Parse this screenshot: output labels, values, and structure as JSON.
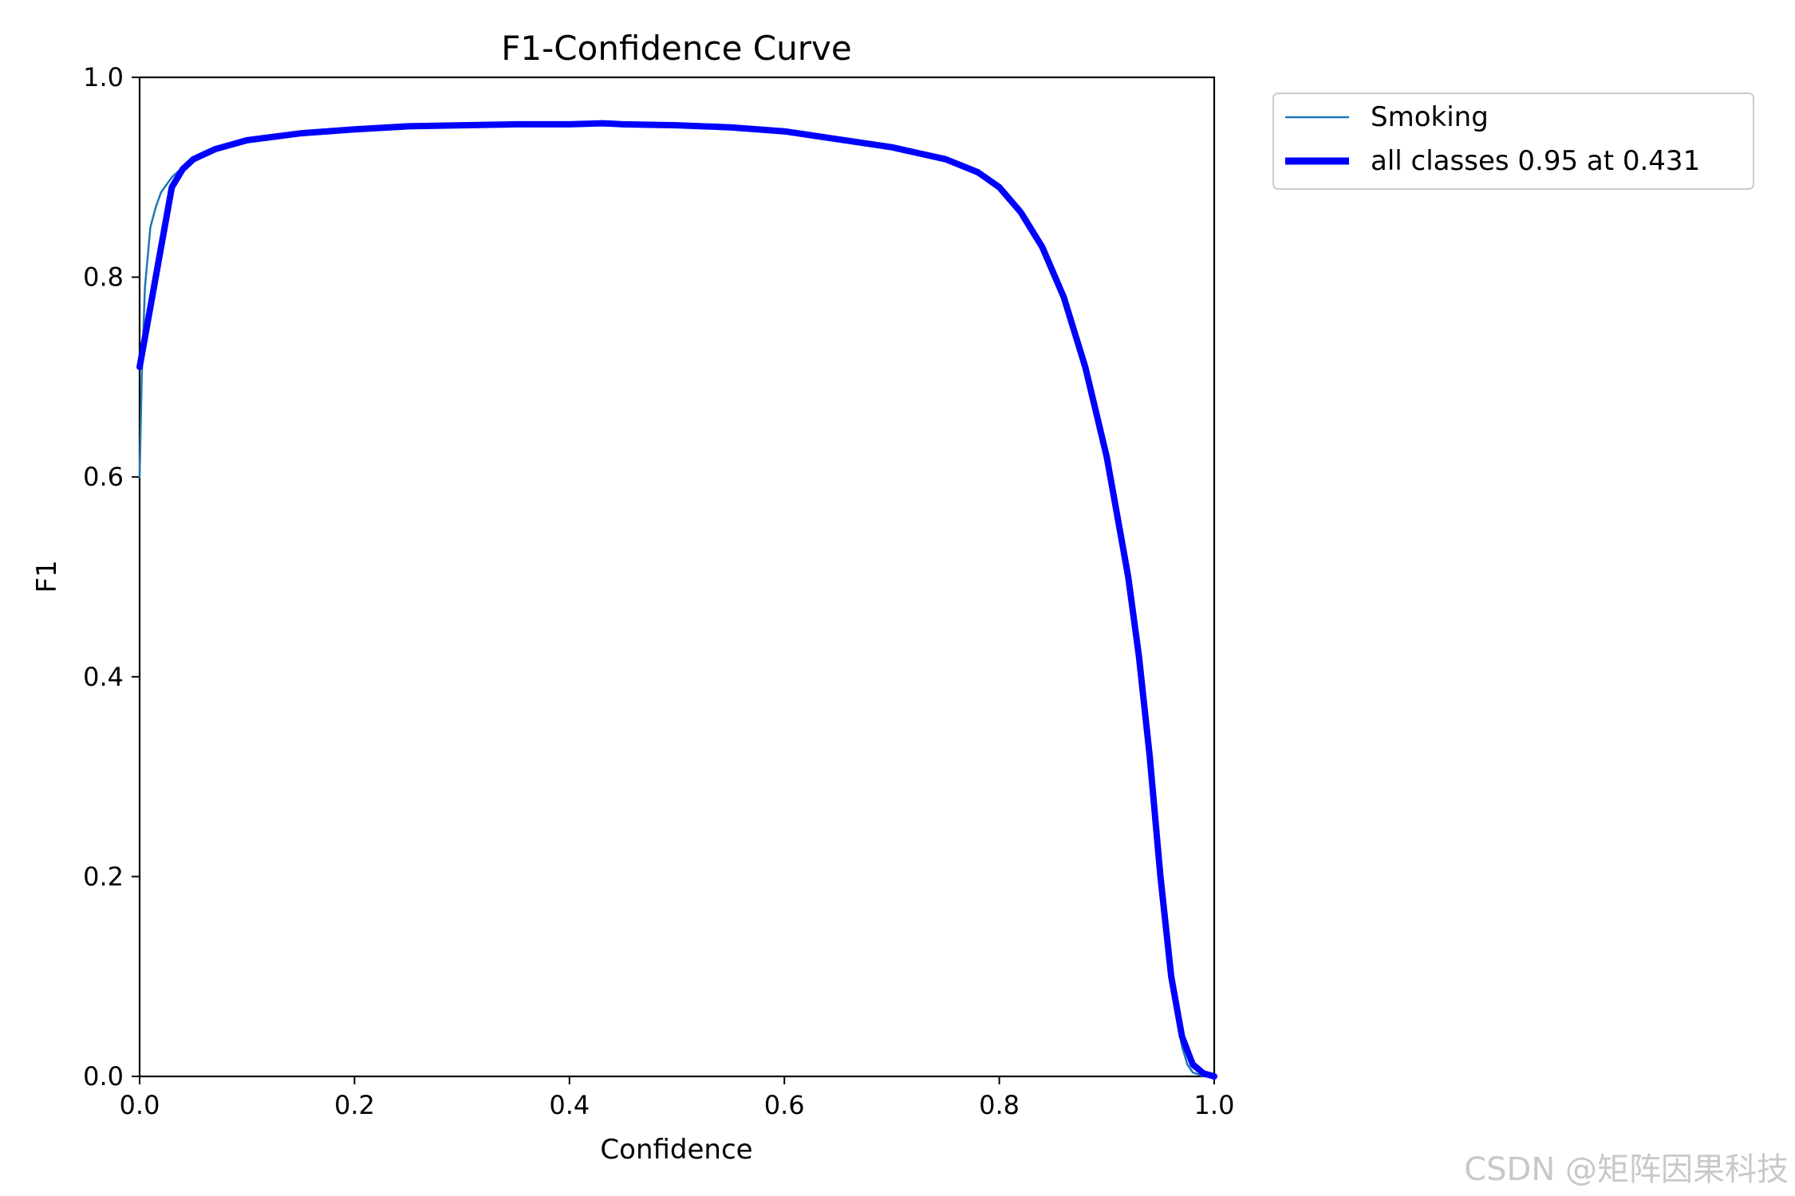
{
  "chart_data": {
    "type": "line",
    "title": "F1-Confidence Curve",
    "xlabel": "Confidence",
    "ylabel": "F1",
    "xlim": [
      0.0,
      1.0
    ],
    "ylim": [
      0.0,
      1.0
    ],
    "x_ticks": [
      "0.0",
      "0.2",
      "0.4",
      "0.6",
      "0.8",
      "1.0"
    ],
    "y_ticks": [
      "0.0",
      "0.2",
      "0.4",
      "0.6",
      "0.8",
      "1.0"
    ],
    "grid": false,
    "legend_position": "outside-top-right",
    "series": [
      {
        "name": "Smoking",
        "color": "#1f77b4",
        "x": [
          0.0,
          0.002,
          0.005,
          0.01,
          0.015,
          0.02,
          0.03,
          0.04,
          0.05,
          0.07,
          0.1,
          0.15,
          0.2,
          0.25,
          0.3,
          0.35,
          0.4,
          0.431,
          0.45,
          0.5,
          0.55,
          0.6,
          0.65,
          0.7,
          0.75,
          0.78,
          0.8,
          0.82,
          0.84,
          0.86,
          0.88,
          0.9,
          0.92,
          0.93,
          0.94,
          0.95,
          0.96,
          0.965,
          0.97,
          0.975,
          0.98,
          0.99,
          1.0
        ],
        "y": [
          0.6,
          0.7,
          0.79,
          0.85,
          0.87,
          0.885,
          0.9,
          0.91,
          0.918,
          0.928,
          0.937,
          0.944,
          0.948,
          0.951,
          0.952,
          0.953,
          0.953,
          0.954,
          0.953,
          0.952,
          0.95,
          0.946,
          0.938,
          0.93,
          0.918,
          0.905,
          0.89,
          0.865,
          0.83,
          0.78,
          0.71,
          0.62,
          0.5,
          0.42,
          0.32,
          0.2,
          0.1,
          0.06,
          0.03,
          0.012,
          0.004,
          0.0,
          0.0
        ]
      },
      {
        "name": "all classes 0.95 at 0.431",
        "color": "#0000ff",
        "x": [
          0.0,
          0.01,
          0.02,
          0.03,
          0.04,
          0.05,
          0.07,
          0.1,
          0.15,
          0.2,
          0.25,
          0.3,
          0.35,
          0.4,
          0.431,
          0.45,
          0.5,
          0.55,
          0.6,
          0.65,
          0.7,
          0.75,
          0.78,
          0.8,
          0.82,
          0.84,
          0.86,
          0.88,
          0.9,
          0.92,
          0.93,
          0.94,
          0.95,
          0.96,
          0.97,
          0.98,
          0.99,
          1.0
        ],
        "y": [
          0.71,
          0.77,
          0.83,
          0.89,
          0.908,
          0.918,
          0.928,
          0.937,
          0.944,
          0.948,
          0.951,
          0.952,
          0.953,
          0.953,
          0.954,
          0.953,
          0.952,
          0.95,
          0.946,
          0.938,
          0.93,
          0.918,
          0.905,
          0.89,
          0.865,
          0.83,
          0.78,
          0.71,
          0.62,
          0.5,
          0.42,
          0.32,
          0.2,
          0.1,
          0.04,
          0.012,
          0.003,
          0.0
        ]
      }
    ]
  },
  "watermark": "CSDN @矩阵因果科技"
}
